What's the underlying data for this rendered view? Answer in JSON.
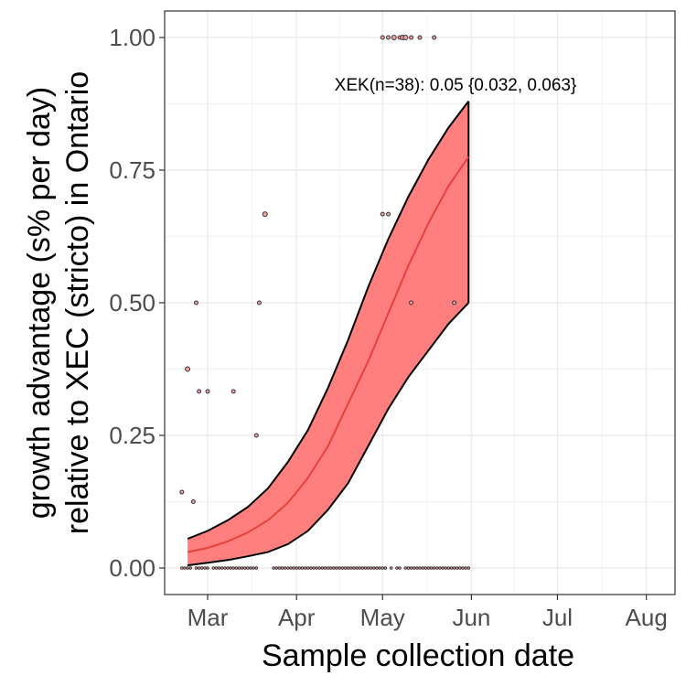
{
  "chart_data": {
    "type": "line",
    "title": "",
    "xlabel": "Sample collection date",
    "ylabel_line1": "growth advantage (s% per day)",
    "ylabel_line2": "relative to XEC (stricto) in Ontario",
    "annotation": "XEK(n=38): 0.05 {0.032, 0.063}",
    "xlim": [
      "2025-02-14",
      "2025-08-11"
    ],
    "ylim": [
      -0.05,
      1.05
    ],
    "x_ticks": [
      {
        "date": "2025-03-01",
        "label": "Mar"
      },
      {
        "date": "2025-04-01",
        "label": "Apr"
      },
      {
        "date": "2025-05-01",
        "label": "May"
      },
      {
        "date": "2025-06-01",
        "label": "Jun"
      },
      {
        "date": "2025-07-01",
        "label": "Jul"
      },
      {
        "date": "2025-08-01",
        "label": "Aug"
      }
    ],
    "y_ticks": [
      {
        "value": 0,
        "label": "0.00"
      },
      {
        "value": 0.25,
        "label": "0.25"
      },
      {
        "value": 0.5,
        "label": "0.50"
      },
      {
        "value": 0.75,
        "label": "0.75"
      },
      {
        "value": 1.0,
        "label": "1.00"
      }
    ],
    "grid": true,
    "colors": {
      "ribbon": "#ff7f7f",
      "fit_line": "#e8403a",
      "ribbon_edge": "#000000",
      "points_fill": "#f0a0a0",
      "points_stroke": "#333333",
      "grid": "#ebebeb",
      "panel_border": "#333333"
    },
    "series": [
      {
        "type": "ribbon_fit",
        "x": [
          "2025-02-22",
          "2025-03-01",
          "2025-03-08",
          "2025-03-15",
          "2025-03-22",
          "2025-03-29",
          "2025-04-05",
          "2025-04-12",
          "2025-04-19",
          "2025-04-26",
          "2025-05-03",
          "2025-05-10",
          "2025-05-17",
          "2025-05-24",
          "2025-05-31"
        ],
        "fit": [
          0.03,
          0.038,
          0.05,
          0.067,
          0.09,
          0.123,
          0.17,
          0.23,
          0.31,
          0.39,
          0.48,
          0.57,
          0.65,
          0.72,
          0.775
        ],
        "lower": [
          0.005,
          0.01,
          0.015,
          0.022,
          0.03,
          0.045,
          0.07,
          0.11,
          0.16,
          0.23,
          0.3,
          0.36,
          0.41,
          0.46,
          0.5
        ],
        "upper": [
          0.055,
          0.07,
          0.09,
          0.115,
          0.15,
          0.2,
          0.26,
          0.34,
          0.43,
          0.53,
          0.62,
          0.7,
          0.77,
          0.83,
          0.88
        ]
      },
      {
        "type": "points",
        "x": [
          "2025-02-20",
          "2025-02-22",
          "2025-02-24",
          "2025-02-25",
          "2025-02-26",
          "2025-03-01",
          "2025-03-10",
          "2025-03-18",
          "2025-03-19",
          "2025-03-21",
          "2025-05-01",
          "2025-05-03",
          "2025-05-05",
          "2025-05-07",
          "2025-05-08",
          "2025-05-09",
          "2025-05-11",
          "2025-05-14",
          "2025-05-19",
          "2025-05-01",
          "2025-05-03",
          "2025-05-11",
          "2025-05-26"
        ],
        "y": [
          0.143,
          0.375,
          0.125,
          0.5,
          0.333,
          0.333,
          0.333,
          0.25,
          0.5,
          0.667,
          1,
          1,
          1,
          1,
          1,
          1,
          1,
          1,
          1,
          0.667,
          0.667,
          0.5,
          0.5
        ],
        "size": [
          3,
          4,
          3,
          3,
          3,
          3,
          3,
          3,
          3,
          4,
          3,
          3,
          4,
          3,
          4,
          4,
          3,
          3,
          3,
          3,
          3,
          3,
          3
        ]
      },
      {
        "type": "zero_points",
        "x_start": "2025-02-20",
        "x_end": "2025-05-31",
        "y": 0
      }
    ]
  }
}
